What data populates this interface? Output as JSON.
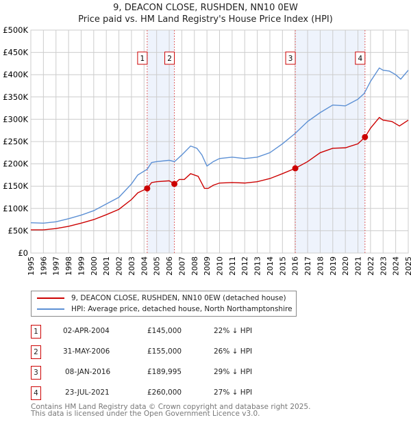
{
  "chart_data": {
    "type": "line",
    "title": "9, DEACON CLOSE, RUSHDEN, NN10 0EW",
    "subtitle": "Price paid vs. HM Land Registry's House Price Index (HPI)",
    "xlim": [
      1995,
      2025
    ],
    "ylim": [
      0,
      500000
    ],
    "x_ticks": [
      "1995",
      "1996",
      "1997",
      "1998",
      "1999",
      "2000",
      "2001",
      "2002",
      "2003",
      "2004",
      "2005",
      "2006",
      "2007",
      "2008",
      "2009",
      "2010",
      "2011",
      "2012",
      "2013",
      "2014",
      "2015",
      "2016",
      "2017",
      "2018",
      "2019",
      "2020",
      "2021",
      "2022",
      "2023",
      "2024",
      "2025"
    ],
    "y_ticks": [
      {
        "v": 0,
        "label": "£0"
      },
      {
        "v": 50000,
        "label": "£50K"
      },
      {
        "v": 100000,
        "label": "£100K"
      },
      {
        "v": 150000,
        "label": "£150K"
      },
      {
        "v": 200000,
        "label": "£200K"
      },
      {
        "v": 250000,
        "label": "£250K"
      },
      {
        "v": 300000,
        "label": "£300K"
      },
      {
        "v": 350000,
        "label": "£350K"
      },
      {
        "v": 400000,
        "label": "£400K"
      },
      {
        "v": 450000,
        "label": "£450K"
      },
      {
        "v": 500000,
        "label": "£500K"
      }
    ],
    "grid": true,
    "series": [
      {
        "name": "9, DEACON CLOSE, RUSHDEN, NN10 0EW (detached house)",
        "color": "#cc0000",
        "points": [
          [
            1995,
            52000
          ],
          [
            1996,
            52000
          ],
          [
            1997,
            55000
          ],
          [
            1998,
            60000
          ],
          [
            1999,
            67000
          ],
          [
            2000,
            75000
          ],
          [
            2001,
            86000
          ],
          [
            2002,
            98000
          ],
          [
            2003,
            120000
          ],
          [
            2003.5,
            135000
          ],
          [
            2004.25,
            145000
          ],
          [
            2004.6,
            158000
          ],
          [
            2005,
            160000
          ],
          [
            2006,
            162000
          ],
          [
            2006.42,
            155000
          ],
          [
            2006.8,
            165000
          ],
          [
            2007.2,
            165000
          ],
          [
            2007.7,
            178000
          ],
          [
            2008.3,
            172000
          ],
          [
            2008.8,
            145000
          ],
          [
            2009.1,
            145000
          ],
          [
            2009.5,
            152000
          ],
          [
            2010,
            157000
          ],
          [
            2011,
            158000
          ],
          [
            2012,
            157000
          ],
          [
            2013,
            160000
          ],
          [
            2014,
            167000
          ],
          [
            2015,
            178000
          ],
          [
            2016.02,
            189995
          ],
          [
            2017,
            205000
          ],
          [
            2018,
            225000
          ],
          [
            2019,
            235000
          ],
          [
            2020,
            236000
          ],
          [
            2021,
            245000
          ],
          [
            2021.56,
            260000
          ],
          [
            2022,
            280000
          ],
          [
            2022.7,
            304000
          ],
          [
            2023,
            298000
          ],
          [
            2023.7,
            295000
          ],
          [
            2024.3,
            285000
          ],
          [
            2025,
            298000
          ]
        ]
      },
      {
        "name": "HPI: Average price, detached house, North Northamptonshire",
        "color": "#5b8fd4",
        "points": [
          [
            1995,
            68000
          ],
          [
            1996,
            67000
          ],
          [
            1997,
            70000
          ],
          [
            1998,
            77000
          ],
          [
            1999,
            85000
          ],
          [
            2000,
            95000
          ],
          [
            2001,
            110000
          ],
          [
            2002,
            125000
          ],
          [
            2003,
            155000
          ],
          [
            2003.5,
            175000
          ],
          [
            2004.25,
            188000
          ],
          [
            2004.6,
            203000
          ],
          [
            2005,
            205000
          ],
          [
            2006,
            208000
          ],
          [
            2006.42,
            205000
          ],
          [
            2007,
            220000
          ],
          [
            2007.7,
            240000
          ],
          [
            2008.2,
            235000
          ],
          [
            2008.6,
            220000
          ],
          [
            2009,
            195000
          ],
          [
            2009.5,
            205000
          ],
          [
            2010,
            212000
          ],
          [
            2011,
            215000
          ],
          [
            2012,
            212000
          ],
          [
            2013,
            215000
          ],
          [
            2014,
            225000
          ],
          [
            2015,
            245000
          ],
          [
            2016,
            268000
          ],
          [
            2017,
            295000
          ],
          [
            2018,
            315000
          ],
          [
            2019,
            332000
          ],
          [
            2020,
            330000
          ],
          [
            2021,
            345000
          ],
          [
            2021.5,
            358000
          ],
          [
            2022,
            385000
          ],
          [
            2022.7,
            415000
          ],
          [
            2023,
            410000
          ],
          [
            2023.5,
            408000
          ],
          [
            2024,
            400000
          ],
          [
            2024.4,
            390000
          ],
          [
            2025,
            410000
          ]
        ]
      }
    ],
    "sales": [
      {
        "n": "1",
        "x": 2004.25,
        "price": 145000,
        "date": "02-APR-2004",
        "price_label": "£145,000",
        "hpi": "22% ↓ HPI"
      },
      {
        "n": "2",
        "x": 2006.41,
        "price": 155000,
        "date": "31-MAY-2006",
        "price_label": "£155,000",
        "hpi": "26% ↓ HPI"
      },
      {
        "n": "3",
        "x": 2016.02,
        "price": 189995,
        "date": "08-JAN-2016",
        "price_label": "£189,995",
        "hpi": "29% ↓ HPI"
      },
      {
        "n": "4",
        "x": 2021.56,
        "price": 260000,
        "date": "23-JUL-2021",
        "price_label": "£260,000",
        "hpi": "27% ↓ HPI"
      }
    ],
    "shaded": [
      [
        2004.25,
        2006.41
      ],
      [
        2016.02,
        2021.56
      ]
    ]
  },
  "footer": {
    "line1": "Contains HM Land Registry data © Crown copyright and database right 2025.",
    "line2": "This data is licensed under the Open Government Licence v3.0."
  }
}
